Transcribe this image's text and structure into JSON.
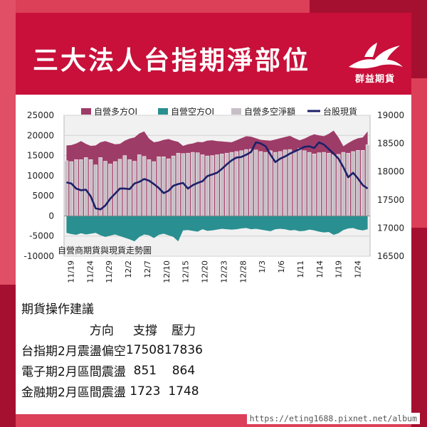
{
  "header": {
    "title": "三大法人台指期淨部位",
    "logo_text": "群益期貨"
  },
  "advice": {
    "title": "期貨操作建議",
    "columns": [
      "",
      "方向",
      "支撐",
      "壓力"
    ],
    "rows": [
      [
        "台指期2月",
        "震盪偏空",
        "17508",
        "17836"
      ],
      [
        "電子期2月",
        "區間震盪",
        "851",
        "864"
      ],
      [
        "金融期2月",
        "區間震盪",
        "1723",
        "1748"
      ]
    ]
  },
  "footer": {
    "url": "https://eting1688.pixnet.net/album"
  },
  "colors": {
    "header_bg": "#c8103a",
    "page_bg": "#dc3f58",
    "long_oi": "#9e3c68",
    "short_oi": "#2a8f90",
    "net": "#c8bfc6",
    "index_line": "#1c2069",
    "plot_bg": "#f1f1f1"
  },
  "chart_data": {
    "type": "bar",
    "annotation": "自營商期貨與現貨走勢圖",
    "legend": [
      "自營多方OI",
      "自營空方OI",
      "自營多空淨額",
      "台股現貨"
    ],
    "legend_position": "top",
    "x_tick_labels": [
      "11/19",
      "11/24",
      "11/29",
      "12/2",
      "12/7",
      "12/10",
      "12/15",
      "12/20",
      "12/23",
      "12/28",
      "1/3",
      "1/6",
      "1/11",
      "1/14",
      "1/19",
      "1/24"
    ],
    "y_left": {
      "ticks": [
        25000,
        20000,
        15000,
        10000,
        5000,
        0,
        -5000,
        -10000
      ],
      "range": [
        -10000,
        25000
      ]
    },
    "y_right": {
      "ticks": [
        19000,
        18500,
        18000,
        17500,
        17000,
        16500
      ],
      "range": [
        16500,
        19000
      ]
    },
    "grid": true,
    "series": [
      {
        "name": "自營多方OI",
        "kind": "area",
        "values": [
          17500,
          17600,
          18000,
          18600,
          17900,
          17400,
          17500,
          18300,
          18600,
          18200,
          17800,
          17900,
          18700,
          19200,
          19500,
          20500,
          21000,
          19200,
          18300,
          18500,
          18900,
          19100,
          18700,
          18400,
          17400,
          17800,
          18000,
          18400,
          18300,
          18700,
          18800,
          18600,
          18500,
          18400,
          18300,
          18800,
          19300,
          19800,
          19700,
          19300,
          18900,
          18800,
          18700,
          19000,
          19300,
          19600,
          19900,
          19300,
          18800,
          19200,
          19800,
          20300,
          20000,
          19800,
          20400,
          21200,
          19500,
          17300,
          18100,
          18800,
          19300,
          19500,
          21000
        ]
      },
      {
        "name": "自營空方OI",
        "kind": "area",
        "values": [
          -4200,
          -4500,
          -4700,
          -4300,
          -4600,
          -4400,
          -4200,
          -4800,
          -5200,
          -4900,
          -4600,
          -5000,
          -5400,
          -5800,
          -6300,
          -5200,
          -4600,
          -4800,
          -5500,
          -4700,
          -4400,
          -4800,
          -5200,
          -6300,
          -3600,
          -3500,
          -3700,
          -3900,
          -3300,
          -3700,
          -3600,
          -3400,
          -3200,
          -3300,
          -3400,
          -3300,
          -3100,
          -3000,
          -3300,
          -3200,
          -3400,
          -3600,
          -3800,
          -3300,
          -3200,
          -3300,
          -3600,
          -3500,
          -3800,
          -3700,
          -3400,
          -3600,
          -3900,
          -4100,
          -4000,
          -4700,
          -4300,
          -3500,
          -3100,
          -3000,
          -3400,
          -3600,
          -3300
        ]
      },
      {
        "name": "自營多空淨額",
        "kind": "bar",
        "values": [
          13700,
          13500,
          14000,
          14000,
          14500,
          14000,
          12700,
          14500,
          13600,
          12900,
          13500,
          14100,
          15000,
          14000,
          13600,
          15200,
          14800,
          14000,
          13500,
          14700,
          14700,
          14200,
          14900,
          15600,
          15500,
          15600,
          15800,
          15700,
          15200,
          14900,
          15000,
          15200,
          15400,
          15600,
          15800,
          16000,
          16200,
          16500,
          16600,
          16400,
          16000,
          15800,
          16200,
          15800,
          16000,
          16400,
          16500,
          16100,
          16800,
          16200,
          15800,
          15400,
          15700,
          15800,
          15600,
          15200,
          15300,
          15800,
          15600,
          16000,
          16300,
          16300,
          17700
        ]
      },
      {
        "name": "台股現貨",
        "kind": "line",
        "axis": "right",
        "values": [
          17810,
          17790,
          17700,
          17670,
          17680,
          17560,
          17350,
          17330,
          17400,
          17520,
          17610,
          17700,
          17700,
          17690,
          17790,
          17820,
          17870,
          17840,
          17780,
          17710,
          17620,
          17660,
          17750,
          17780,
          17800,
          17700,
          17760,
          17800,
          17830,
          17920,
          17950,
          17980,
          18050,
          18130,
          18200,
          18250,
          18260,
          18300,
          18350,
          18520,
          18500,
          18450,
          18300,
          18170,
          18230,
          18270,
          18320,
          18360,
          18400,
          18440,
          18450,
          18420,
          18520,
          18480,
          18400,
          18320,
          18230,
          18080,
          17900,
          17980,
          17880,
          17760,
          17700
        ]
      }
    ]
  }
}
